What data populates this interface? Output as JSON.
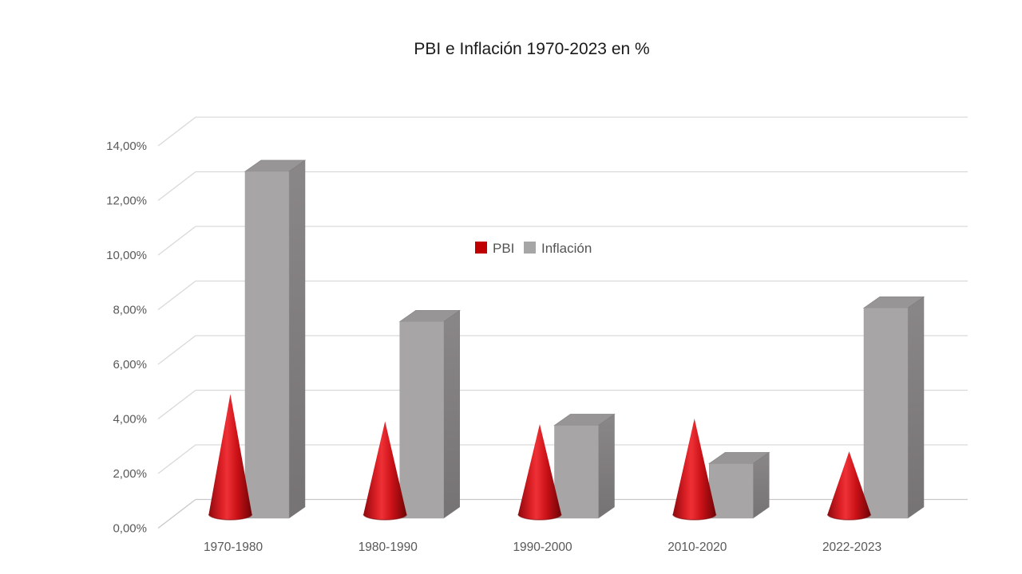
{
  "chart_data": {
    "type": "bar",
    "style": "3d-clustered",
    "title": "PBI e Inflación 1970-2023 en %",
    "categories": [
      "1970-1980",
      "1980-1990",
      "1990-2000",
      "2010-2020",
      "2022-2023"
    ],
    "series": [
      {
        "name": "PBI",
        "shape": "cone",
        "color": "#c00000",
        "values": [
          4.4,
          3.4,
          3.3,
          3.5,
          2.3
        ]
      },
      {
        "name": "Inflación",
        "shape": "column",
        "color": "#a6a6a6",
        "values": [
          12.7,
          7.2,
          3.4,
          2.0,
          7.7
        ]
      }
    ],
    "unit": "%",
    "ylim": [
      0,
      14
    ],
    "ytick_step": 2,
    "ytick_labels": [
      "0,00%",
      "2,00%",
      "4,00%",
      "6,00%",
      "8,00%",
      "10,00%",
      "12,00%",
      "14,00%"
    ],
    "legend_position": "middle-center",
    "grid": true
  },
  "colors": {
    "background": "#ffffff",
    "gridline": "#d9d9d9",
    "baseline": "#c9c9c9",
    "axis_text": "#595959",
    "title_text": "#1a1a1a",
    "legend_text": "#545454",
    "cone_gradient": [
      "#8f0a0e",
      "#dd2026",
      "#ee3136",
      "#cc1218",
      "#6f0306"
    ],
    "cone_rim": "#7a0509",
    "column_front": "#a8a5a6",
    "column_top": "#989596",
    "column_side_light": "#8a8788",
    "column_side_dark": "#767374"
  }
}
